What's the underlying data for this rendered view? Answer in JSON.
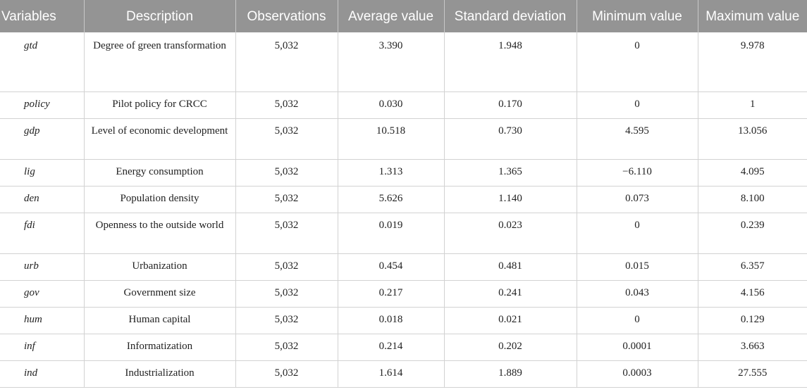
{
  "headers": [
    "Variables",
    "Description",
    "Observations",
    "Average value",
    "Standard deviation",
    "Minimum value",
    "Maximum value"
  ],
  "rows": [
    {
      "variable": "gtd",
      "description": "Degree of green transformation",
      "observations": "5,032",
      "average": "3.390",
      "std": "1.948",
      "min": "0",
      "max": "9.978"
    },
    {
      "variable": "policy",
      "description": "Pilot policy for CRCC",
      "observations": "5,032",
      "average": "0.030",
      "std": "0.170",
      "min": "0",
      "max": "1"
    },
    {
      "variable": "gdp",
      "description": "Level of economic development",
      "observations": "5,032",
      "average": "10.518",
      "std": "0.730",
      "min": "4.595",
      "max": "13.056"
    },
    {
      "variable": "lig",
      "description": "Energy consumption",
      "observations": "5,032",
      "average": "1.313",
      "std": "1.365",
      "min": "−6.110",
      "max": "4.095"
    },
    {
      "variable": "den",
      "description": "Population density",
      "observations": "5,032",
      "average": "5.626",
      "std": "1.140",
      "min": "0.073",
      "max": "8.100"
    },
    {
      "variable": "fdi",
      "description": "Openness to the outside world",
      "observations": "5,032",
      "average": "0.019",
      "std": "0.023",
      "min": "0",
      "max": "0.239"
    },
    {
      "variable": "urb",
      "description": "Urbanization",
      "observations": "5,032",
      "average": "0.454",
      "std": "0.481",
      "min": "0.015",
      "max": "6.357"
    },
    {
      "variable": "gov",
      "description": "Government size",
      "observations": "5,032",
      "average": "0.217",
      "std": "0.241",
      "min": "0.043",
      "max": "4.156"
    },
    {
      "variable": "hum",
      "description": "Human capital",
      "observations": "5,032",
      "average": "0.018",
      "std": "0.021",
      "min": "0",
      "max": "0.129"
    },
    {
      "variable": "inf",
      "description": "Informatization",
      "observations": "5,032",
      "average": "0.214",
      "std": "0.202",
      "min": "0.0001",
      "max": "3.663"
    },
    {
      "variable": "ind",
      "description": "Industrialization",
      "observations": "5,032",
      "average": "1.614",
      "std": "1.889",
      "min": "0.0003",
      "max": "27.555"
    }
  ]
}
